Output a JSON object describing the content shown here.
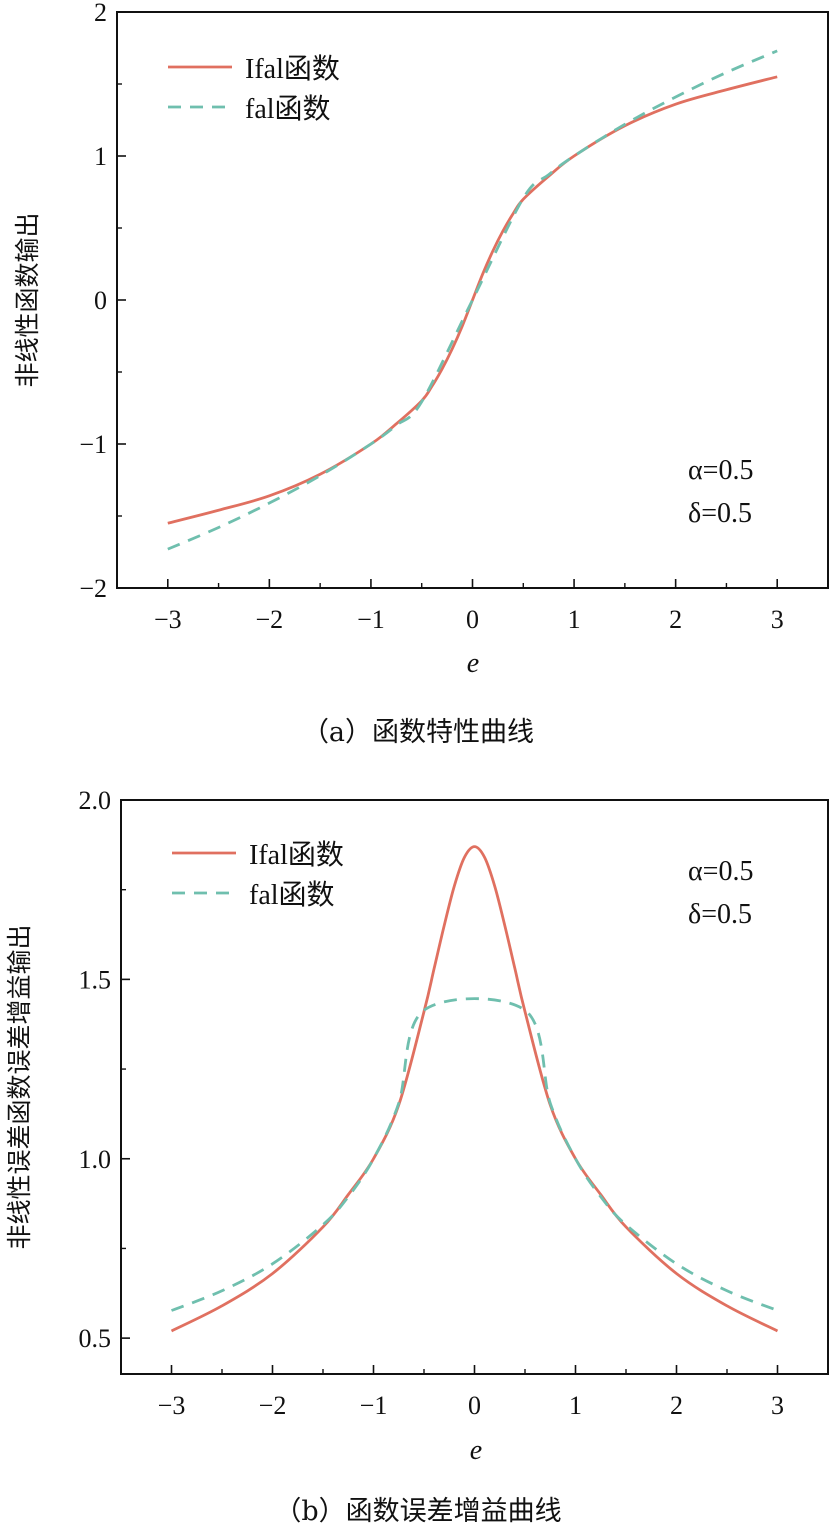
{
  "colors": {
    "ifal": "#e07060",
    "fal": "#6fbfae",
    "axis": "#111111"
  },
  "chart_data": [
    {
      "type": "line",
      "caption": "（a）函数特性曲线",
      "xlabel": "e",
      "ylabel": "非线性函数输出",
      "xlim": [
        -3.5,
        3.5
      ],
      "ylim": [
        -2,
        2
      ],
      "xticks": [
        -3,
        -2,
        -1,
        0,
        1,
        2,
        3
      ],
      "xtick_labels": [
        "−3",
        "−2",
        "−1",
        "0",
        "1",
        "2",
        "3"
      ],
      "yticks": [
        -2,
        -1,
        0,
        1,
        2
      ],
      "ytick_labels": [
        "−2",
        "−1",
        "0",
        "1",
        "2"
      ],
      "legend": "top-left",
      "params": {
        "alpha": "α=0.5",
        "delta": "δ=0.5"
      },
      "series": [
        {
          "name": "Ifal函数",
          "style": "solid",
          "color": "#e07060",
          "x": [
            -3,
            -2.5,
            -2,
            -1.5,
            -1,
            -0.75,
            -0.5,
            -0.4,
            -0.3,
            -0.2,
            -0.1,
            0,
            0.1,
            0.2,
            0.3,
            0.4,
            0.5,
            0.75,
            1,
            1.5,
            2,
            2.5,
            3
          ],
          "y": [
            -1.55,
            -1.46,
            -1.36,
            -1.21,
            -1.0,
            -0.86,
            -0.7,
            -0.6,
            -0.48,
            -0.34,
            -0.18,
            0,
            0.18,
            0.34,
            0.48,
            0.6,
            0.7,
            0.86,
            1.0,
            1.21,
            1.36,
            1.46,
            1.55
          ]
        },
        {
          "name": "fal函数",
          "style": "dashed",
          "color": "#6fbfae",
          "x": [
            -3,
            -2.5,
            -2,
            -1.5,
            -1,
            -0.75,
            -0.5,
            0,
            0.5,
            0.75,
            1,
            1.5,
            2,
            2.5,
            3
          ],
          "y": [
            -1.73,
            -1.58,
            -1.41,
            -1.22,
            -1.0,
            -0.87,
            -0.707,
            0,
            0.707,
            0.87,
            1.0,
            1.22,
            1.41,
            1.58,
            1.73
          ]
        }
      ]
    },
    {
      "type": "line",
      "caption": "（b）函数误差增益曲线",
      "xlabel": "e",
      "ylabel": "非线性误差函数误差增益输出",
      "xlim": [
        -3.5,
        3.5
      ],
      "ylim": [
        0.4,
        2.0
      ],
      "xticks": [
        -3,
        -2,
        -1,
        0,
        1,
        2,
        3
      ],
      "xtick_labels": [
        "−3",
        "−2",
        "−1",
        "0",
        "1",
        "2",
        "3"
      ],
      "yticks": [
        0.5,
        1.0,
        1.5,
        2.0
      ],
      "ytick_labels": [
        "0.5",
        "1.0",
        "1.5",
        "2.0"
      ],
      "legend": "top-left",
      "params": {
        "alpha": "α=0.5",
        "delta": "δ=0.5"
      },
      "series": [
        {
          "name": "Ifal函数",
          "style": "solid",
          "color": "#e07060",
          "x": [
            -3,
            -2.5,
            -2,
            -1.5,
            -1.25,
            -1,
            -0.75,
            -0.5,
            -0.4,
            -0.3,
            -0.2,
            -0.1,
            0,
            0.1,
            0.2,
            0.3,
            0.4,
            0.5,
            0.75,
            1,
            1.25,
            1.5,
            2,
            2.5,
            3
          ],
          "y": [
            0.52,
            0.59,
            0.68,
            0.81,
            0.9,
            1.0,
            1.15,
            1.41,
            1.53,
            1.65,
            1.76,
            1.84,
            1.87,
            1.84,
            1.76,
            1.65,
            1.53,
            1.41,
            1.15,
            1.0,
            0.9,
            0.81,
            0.68,
            0.59,
            0.52
          ]
        },
        {
          "name": "fal函数",
          "style": "dashed",
          "color": "#6fbfae",
          "x": [
            -3,
            -2.5,
            -2,
            -1.5,
            -1.25,
            -1,
            -0.75,
            -0.5,
            0.5,
            0.75,
            1,
            1.25,
            1.5,
            2,
            2.5,
            3
          ],
          "y": [
            0.577,
            0.632,
            0.707,
            0.816,
            0.894,
            1.0,
            1.155,
            1.414,
            1.414,
            1.155,
            1.0,
            0.894,
            0.816,
            0.707,
            0.632,
            0.577
          ]
        }
      ]
    }
  ]
}
